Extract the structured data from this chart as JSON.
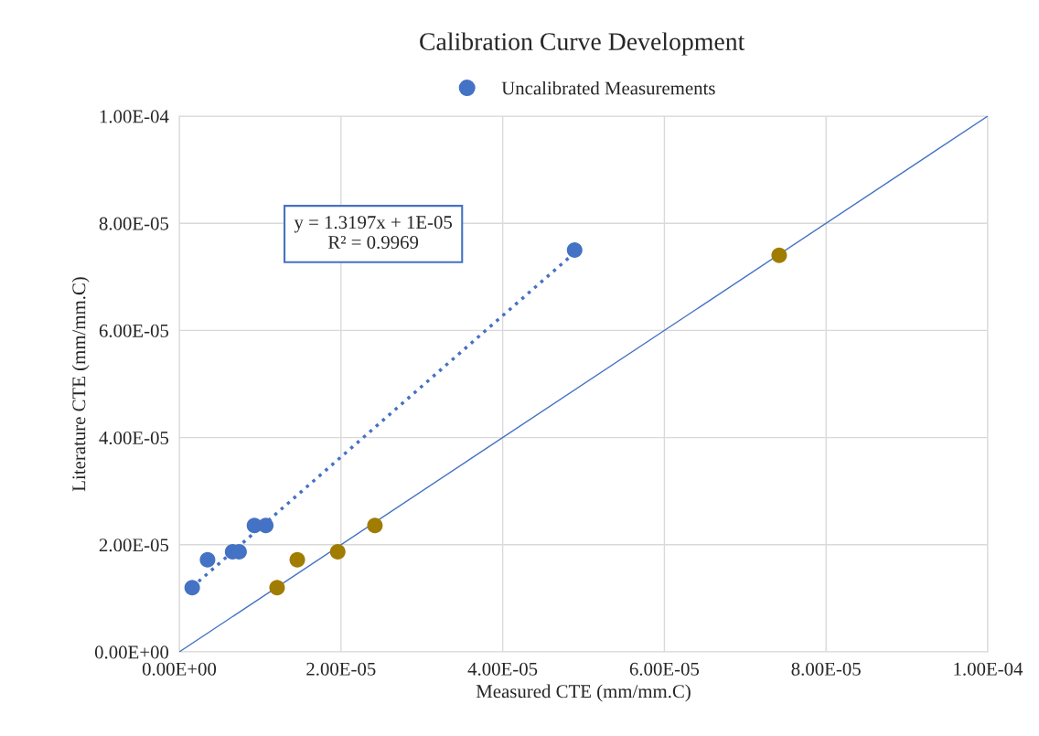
{
  "chart_data": {
    "type": "scatter",
    "title": "Calibration Curve Development",
    "xlabel": "Measured CTE (mm/mm.C)",
    "ylabel": "Literature CTE (mm/mm.C)",
    "series": [
      {
        "name": "Uncalibrated Measurements",
        "marker": "circle",
        "color": "#4472c4",
        "x": [
          1.6e-06,
          3.5e-06,
          6.6e-06,
          7.4e-06,
          9.3e-06,
          1.07e-05,
          4.89e-05
        ],
        "values": [
          1.2e-05,
          1.72e-05,
          1.87e-05,
          1.87e-05,
          2.36e-05,
          2.36e-05,
          7.5e-05
        ]
      },
      {
        "marker": "circle",
        "color": "#a07c00",
        "x": [
          1.21e-05,
          1.46e-05,
          1.96e-05,
          2.42e-05,
          7.42e-05
        ],
        "values": [
          1.2e-05,
          1.72e-05,
          1.87e-05,
          2.36e-05,
          7.4e-05
        ]
      },
      {
        "type": "line",
        "marker": "none",
        "color": "#4472c4",
        "line_style": "dotted",
        "x": [
          1.6e-06,
          4.89e-05
        ],
        "values": [
          1.21e-05,
          7.45e-05
        ]
      },
      {
        "type": "line",
        "marker": "none",
        "color": "#4472c4",
        "line_style": "solid",
        "x": [
          0,
          0.0001
        ],
        "values": [
          0,
          0.0001
        ]
      }
    ],
    "annotations": [
      "y = 1.3197x + 1E-05",
      "R² = 0.9969"
    ],
    "xlim": [
      0,
      0.0001
    ],
    "ylim": [
      0,
      0.0001
    ],
    "xticks": [
      {
        "value": 0,
        "label": "0.00E+00"
      },
      {
        "value": 2e-05,
        "label": "2.00E-05"
      },
      {
        "value": 4e-05,
        "label": "4.00E-05"
      },
      {
        "value": 6e-05,
        "label": "6.00E-05"
      },
      {
        "value": 8e-05,
        "label": "8.00E-05"
      },
      {
        "value": 0.0001,
        "label": "1.00E-04"
      }
    ],
    "yticks": [
      {
        "value": 0,
        "label": "0.00E+00"
      },
      {
        "value": 2e-05,
        "label": "2.00E-05"
      },
      {
        "value": 4e-05,
        "label": "4.00E-05"
      },
      {
        "value": 6e-05,
        "label": "6.00E-05"
      },
      {
        "value": 8e-05,
        "label": "8.00E-05"
      },
      {
        "value": 0.0001,
        "label": "1.00E-04"
      }
    ],
    "grid": true,
    "legend": "top"
  }
}
